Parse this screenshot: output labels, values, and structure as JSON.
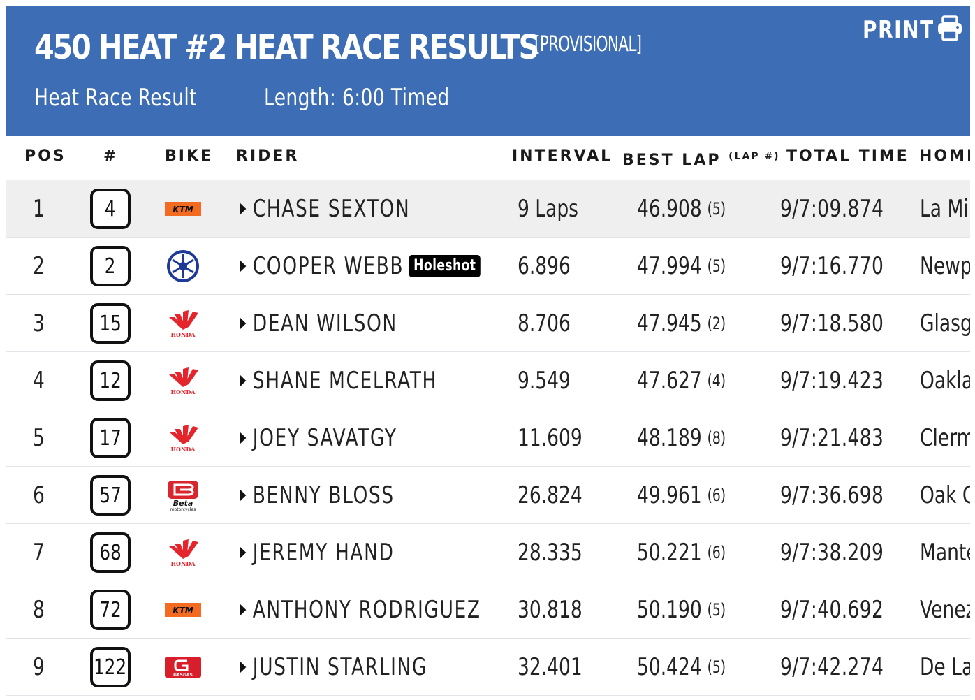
{
  "header": {
    "title": "450 HEAT #2 HEAT RACE RESULTS",
    "status": "[PROVISIONAL]",
    "print_label": "PRINT",
    "result_type": "Heat Race Result",
    "length": "Length: 6:00 Timed",
    "background_color": "#3d6db4"
  },
  "columns": {
    "pos": "POS",
    "number": "#",
    "bike": "BIKE",
    "rider": "RIDER",
    "interval": "INTERVAL",
    "best_lap": "BEST LAP",
    "best_lap_note": "(LAP #)",
    "total_time": "TOTAL TIME",
    "hometown": "HOMETOWN"
  },
  "rows": [
    {
      "pos": "1",
      "number": "4",
      "bike": "ktm",
      "rider": "CHASE SEXTON",
      "badge": "",
      "interval": "9 Laps",
      "best_lap": "46.908",
      "lap": "(5)",
      "total": "9/7:09.874",
      "home": "La Mirada"
    },
    {
      "pos": "2",
      "number": "2",
      "bike": "yamaha",
      "rider": "COOPER WEBB",
      "badge": "Holeshot",
      "interval": "6.896",
      "best_lap": "47.994",
      "lap": "(5)",
      "total": "9/7:16.770",
      "home": "Newport"
    },
    {
      "pos": "3",
      "number": "15",
      "bike": "honda",
      "rider": "DEAN WILSON",
      "badge": "",
      "interval": "8.706",
      "best_lap": "47.945",
      "lap": "(2)",
      "total": "9/7:18.580",
      "home": "Glasgow"
    },
    {
      "pos": "4",
      "number": "12",
      "bike": "honda",
      "rider": "SHANE MCELRATH",
      "badge": "",
      "interval": "9.549",
      "best_lap": "47.627",
      "lap": "(4)",
      "total": "9/7:19.423",
      "home": "Oakland"
    },
    {
      "pos": "5",
      "number": "17",
      "bike": "honda",
      "rider": "JOEY SAVATGY",
      "badge": "",
      "interval": "11.609",
      "best_lap": "48.189",
      "lap": "(8)",
      "total": "9/7:21.483",
      "home": "Clermont"
    },
    {
      "pos": "6",
      "number": "57",
      "bike": "beta",
      "rider": "BENNY BLOSS",
      "badge": "",
      "interval": "26.824",
      "best_lap": "49.961",
      "lap": "(6)",
      "total": "9/7:36.698",
      "home": "Oak Grove"
    },
    {
      "pos": "7",
      "number": "68",
      "bike": "honda",
      "rider": "JEREMY HAND",
      "badge": "",
      "interval": "28.335",
      "best_lap": "50.221",
      "lap": "(6)",
      "total": "9/7:38.209",
      "home": "Manteca"
    },
    {
      "pos": "8",
      "number": "72",
      "bike": "ktm",
      "rider": "ANTHONY RODRIGUEZ",
      "badge": "",
      "interval": "30.818",
      "best_lap": "50.190",
      "lap": "(5)",
      "total": "9/7:40.692",
      "home": "Venezuela"
    },
    {
      "pos": "9",
      "number": "122",
      "bike": "gasgas",
      "rider": "JUSTIN STARLING",
      "badge": "",
      "interval": "32.401",
      "best_lap": "50.424",
      "lap": "(5)",
      "total": "9/7:42.274",
      "home": "De Land"
    }
  ],
  "brand_logos": {
    "ktm": {
      "text": "KTM",
      "color": "#f26b21"
    },
    "yamaha": {
      "color": "#1d3a96"
    },
    "honda": {
      "text": "HONDA",
      "color": "#e4252c"
    },
    "beta": {
      "text": "Beta",
      "sub": "motorcycles",
      "color": "#d8262e"
    },
    "gasgas": {
      "text": "GASGAS",
      "color": "#d81e2b"
    }
  }
}
